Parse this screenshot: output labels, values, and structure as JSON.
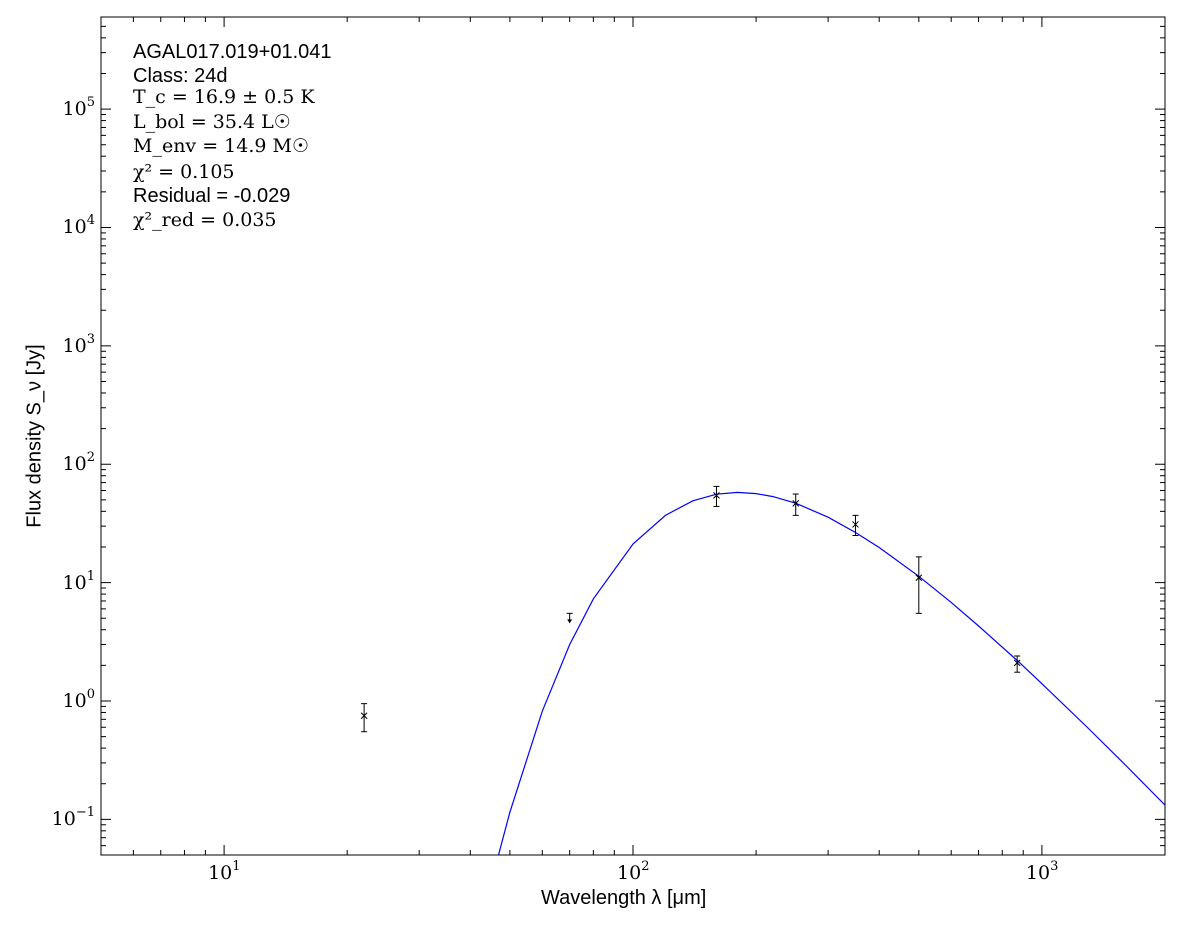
{
  "chart_data": {
    "type": "scatter",
    "xlabel": "Wavelength λ [μm]",
    "ylabel": "Flux density S_ν [Jy]",
    "xscale": "log",
    "yscale": "log",
    "xlim": [
      5,
      2000
    ],
    "ylim": [
      0.05,
      600000
    ],
    "grid": false,
    "x_tick_labels": [
      {
        "base": "10",
        "exp": "1",
        "value": 10
      },
      {
        "base": "10",
        "exp": "2",
        "value": 100
      },
      {
        "base": "10",
        "exp": "3",
        "value": 1000
      }
    ],
    "y_tick_labels": [
      {
        "base": "10",
        "exp": "−1",
        "value": 0.1
      },
      {
        "base": "10",
        "exp": "0",
        "value": 1
      },
      {
        "base": "10",
        "exp": "1",
        "value": 10
      },
      {
        "base": "10",
        "exp": "2",
        "value": 100
      },
      {
        "base": "10",
        "exp": "3",
        "value": 1000
      },
      {
        "base": "10",
        "exp": "4",
        "value": 10000
      },
      {
        "base": "10",
        "exp": "5",
        "value": 100000
      }
    ],
    "annotation": {
      "source": "AGAL017.019+01.041",
      "class": "Class: 24d",
      "tc": "T_c = 16.9 ± 0.5 K",
      "lbol": "L_bol = 35.4 L☉",
      "menv": "M_env = 14.9 M☉",
      "chi2": "χ² = 0.105",
      "residual": "Residual = -0.029",
      "chi2red": "χ²_red = 0.035"
    },
    "points": [
      {
        "x": 22,
        "y": 0.75,
        "yerr_low": 0.55,
        "yerr_high": 0.95
      },
      {
        "x": 160,
        "y": 54.6,
        "yerr_low": 44,
        "yerr_high": 65
      },
      {
        "x": 250,
        "y": 46.7,
        "yerr_low": 37,
        "yerr_high": 56
      },
      {
        "x": 350,
        "y": 31,
        "yerr_low": 25,
        "yerr_high": 37
      },
      {
        "x": 500,
        "y": 11,
        "yerr_low": 5.5,
        "yerr_high": 16.5
      },
      {
        "x": 870,
        "y": 2.1,
        "yerr_low": 1.75,
        "yerr_high": 2.4
      }
    ],
    "upper_limits": [
      {
        "x": 70,
        "y": 5.5
      }
    ],
    "model": {
      "color": "#0000ff",
      "x": [
        46,
        50,
        60,
        70,
        80,
        100,
        120,
        140,
        160,
        180,
        200,
        220,
        250,
        300,
        350,
        400,
        500,
        600,
        700,
        870,
        1000,
        1300,
        1600,
        2000
      ],
      "y": [
        0.039,
        0.115,
        0.82,
        3.0,
        7.3,
        21.2,
        37.0,
        49.1,
        55.8,
        57.8,
        56.5,
        53.3,
        46.9,
        35.7,
        26.5,
        19.8,
        11.3,
        6.8,
        4.3,
        2.2,
        1.4,
        0.586,
        0.288,
        0.132
      ]
    },
    "point_color": "#000000"
  }
}
